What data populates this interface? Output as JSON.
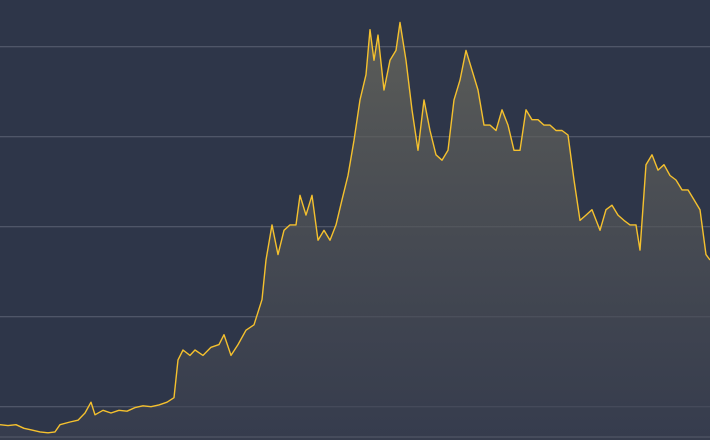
{
  "chart_data": {
    "type": "area-line",
    "color": "#f5c12e",
    "grid": true,
    "xlim": [
      0,
      710
    ],
    "ylim": [
      0.63,
      5.52
    ],
    "yticks": [
      1,
      2,
      3,
      4,
      5
    ],
    "x": [
      0,
      8,
      16,
      24,
      32,
      40,
      48,
      55,
      60,
      70,
      78,
      85,
      91,
      95,
      103,
      111,
      119,
      127,
      135,
      143,
      151,
      159,
      167,
      174,
      178,
      183,
      190,
      195,
      203,
      211,
      219,
      224,
      231,
      238,
      246,
      254,
      262,
      266,
      272,
      278,
      284,
      290,
      296,
      300,
      306,
      312,
      318,
      324,
      330,
      336,
      342,
      348,
      354,
      360,
      366,
      370,
      374,
      378,
      384,
      390,
      396,
      400,
      406,
      412,
      418,
      424,
      430,
      436,
      442,
      448,
      454,
      460,
      466,
      472,
      478,
      484,
      490,
      496,
      502,
      508,
      514,
      520,
      526,
      532,
      538,
      544,
      550,
      556,
      562,
      568,
      574,
      580,
      586,
      592,
      600,
      606,
      612,
      618,
      624,
      630,
      636,
      640,
      646,
      652,
      658,
      664,
      670,
      676,
      682,
      688,
      694,
      700,
      706,
      710
    ],
    "values": [
      0.8,
      0.79,
      0.8,
      0.76,
      0.74,
      0.72,
      0.71,
      0.72,
      0.8,
      0.83,
      0.85,
      0.93,
      1.05,
      0.91,
      0.96,
      0.93,
      0.96,
      0.95,
      0.99,
      1.01,
      1.0,
      1.02,
      1.05,
      1.1,
      1.52,
      1.63,
      1.57,
      1.63,
      1.57,
      1.66,
      1.69,
      1.8,
      1.57,
      1.69,
      1.85,
      1.91,
      2.19,
      2.63,
      3.02,
      2.69,
      2.96,
      3.02,
      3.02,
      3.35,
      3.13,
      3.35,
      2.85,
      2.96,
      2.85,
      3.02,
      3.3,
      3.57,
      3.96,
      4.41,
      4.69,
      5.19,
      4.85,
      5.13,
      4.52,
      4.85,
      4.96,
      5.27,
      4.85,
      4.3,
      3.85,
      4.41,
      4.07,
      3.8,
      3.74,
      3.85,
      4.41,
      4.63,
      4.96,
      4.74,
      4.52,
      4.13,
      4.13,
      4.07,
      4.3,
      4.13,
      3.85,
      3.85,
      4.3,
      4.19,
      4.19,
      4.13,
      4.13,
      4.07,
      4.07,
      4.02,
      3.52,
      3.07,
      3.13,
      3.19,
      2.96,
      3.19,
      3.24,
      3.13,
      3.07,
      3.02,
      3.02,
      2.74,
      3.69,
      3.8,
      3.63,
      3.69,
      3.57,
      3.52,
      3.41,
      3.41,
      3.3,
      3.19,
      2.69,
      2.63
    ]
  }
}
